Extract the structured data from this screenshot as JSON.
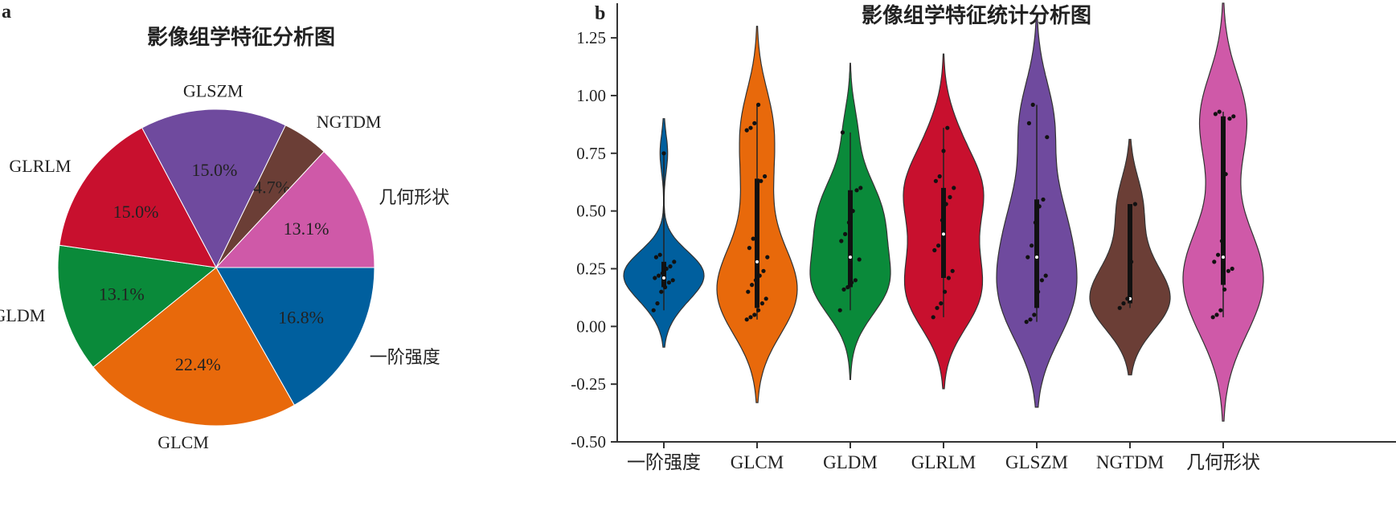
{
  "chart_data": [
    {
      "panel": "a",
      "type": "pie",
      "title": "影像组学特征分析图",
      "slices": [
        {
          "label": "一阶强度",
          "value": 16.8,
          "pct_text": "16.8%",
          "color": "#005f9e"
        },
        {
          "label": "GLCM",
          "value": 22.4,
          "pct_text": "22.4%",
          "color": "#e8690b"
        },
        {
          "label": "GLDM",
          "value": 13.1,
          "pct_text": "13.1%",
          "color": "#0a8a3a"
        },
        {
          "label": "GLRLM",
          "value": 15.0,
          "pct_text": "15.0%",
          "color": "#c8102e"
        },
        {
          "label": "GLSZM",
          "value": 15.0,
          "pct_text": "15.0%",
          "color": "#6f4a9e"
        },
        {
          "label": "NGTDM",
          "value": 4.7,
          "pct_text": "4.7%",
          "color": "#6b3e36"
        },
        {
          "label": "几何形状",
          "value": 13.1,
          "pct_text": "13.1%",
          "color": "#cf59a8"
        }
      ]
    },
    {
      "panel": "b",
      "type": "violin",
      "title": "影像组学特征统计分析图",
      "ylim": [
        -0.5,
        1.4
      ],
      "yticks": [
        "-0.50",
        "-0.25",
        "0.00",
        "0.25",
        "0.50",
        "0.75",
        "1.00",
        "1.25"
      ],
      "ytick_values": [
        -0.5,
        -0.25,
        0.0,
        0.25,
        0.5,
        0.75,
        1.0,
        1.25
      ],
      "categories": [
        "一阶强度",
        "GLCM",
        "GLDM",
        "GLRLM",
        "GLSZM",
        "NGTDM",
        "几何形状"
      ],
      "series": [
        {
          "category": "一阶强度",
          "color": "#005f9e",
          "min": -0.09,
          "max": 0.9,
          "q1": 0.17,
          "median": 0.21,
          "q3": 0.28,
          "points": [
            0.07,
            0.1,
            0.15,
            0.17,
            0.19,
            0.2,
            0.21,
            0.22,
            0.23,
            0.25,
            0.26,
            0.28,
            0.3,
            0.31,
            0.75
          ]
        },
        {
          "category": "GLCM",
          "color": "#e8690b",
          "min": -0.33,
          "max": 1.3,
          "q1": 0.08,
          "median": 0.28,
          "q3": 0.64,
          "points": [
            0.03,
            0.04,
            0.05,
            0.07,
            0.1,
            0.12,
            0.15,
            0.18,
            0.2,
            0.22,
            0.24,
            0.3,
            0.34,
            0.38,
            0.59,
            0.63,
            0.65,
            0.85,
            0.86,
            0.88,
            0.96
          ]
        },
        {
          "category": "GLDM",
          "color": "#0a8a3a",
          "min": -0.23,
          "max": 1.14,
          "q1": 0.17,
          "median": 0.3,
          "q3": 0.59,
          "points": [
            0.07,
            0.16,
            0.17,
            0.19,
            0.2,
            0.29,
            0.37,
            0.4,
            0.45,
            0.5,
            0.59,
            0.6,
            0.84
          ]
        },
        {
          "category": "GLRLM",
          "color": "#c8102e",
          "min": -0.27,
          "max": 1.18,
          "q1": 0.21,
          "median": 0.4,
          "q3": 0.6,
          "points": [
            0.04,
            0.08,
            0.1,
            0.15,
            0.21,
            0.24,
            0.33,
            0.35,
            0.46,
            0.53,
            0.56,
            0.6,
            0.63,
            0.65,
            0.76,
            0.86
          ]
        },
        {
          "category": "GLSZM",
          "color": "#6f4a9e",
          "min": -0.35,
          "max": 1.33,
          "q1": 0.08,
          "median": 0.3,
          "q3": 0.55,
          "points": [
            0.02,
            0.03,
            0.05,
            0.15,
            0.2,
            0.22,
            0.3,
            0.35,
            0.45,
            0.52,
            0.55,
            0.82,
            0.88,
            0.96
          ]
        },
        {
          "category": "NGTDM",
          "color": "#6b3e36",
          "min": -0.21,
          "max": 0.81,
          "q1": 0.1,
          "median": 0.12,
          "q3": 0.53,
          "points": [
            0.08,
            0.1,
            0.12,
            0.28,
            0.53
          ]
        },
        {
          "category": "几何形状",
          "color": "#cf59a8",
          "min": -0.41,
          "max": 1.4,
          "q1": 0.18,
          "median": 0.3,
          "q3": 0.91,
          "points": [
            0.04,
            0.05,
            0.07,
            0.16,
            0.24,
            0.25,
            0.28,
            0.31,
            0.37,
            0.66,
            0.9,
            0.91,
            0.92,
            0.93
          ]
        }
      ]
    }
  ]
}
